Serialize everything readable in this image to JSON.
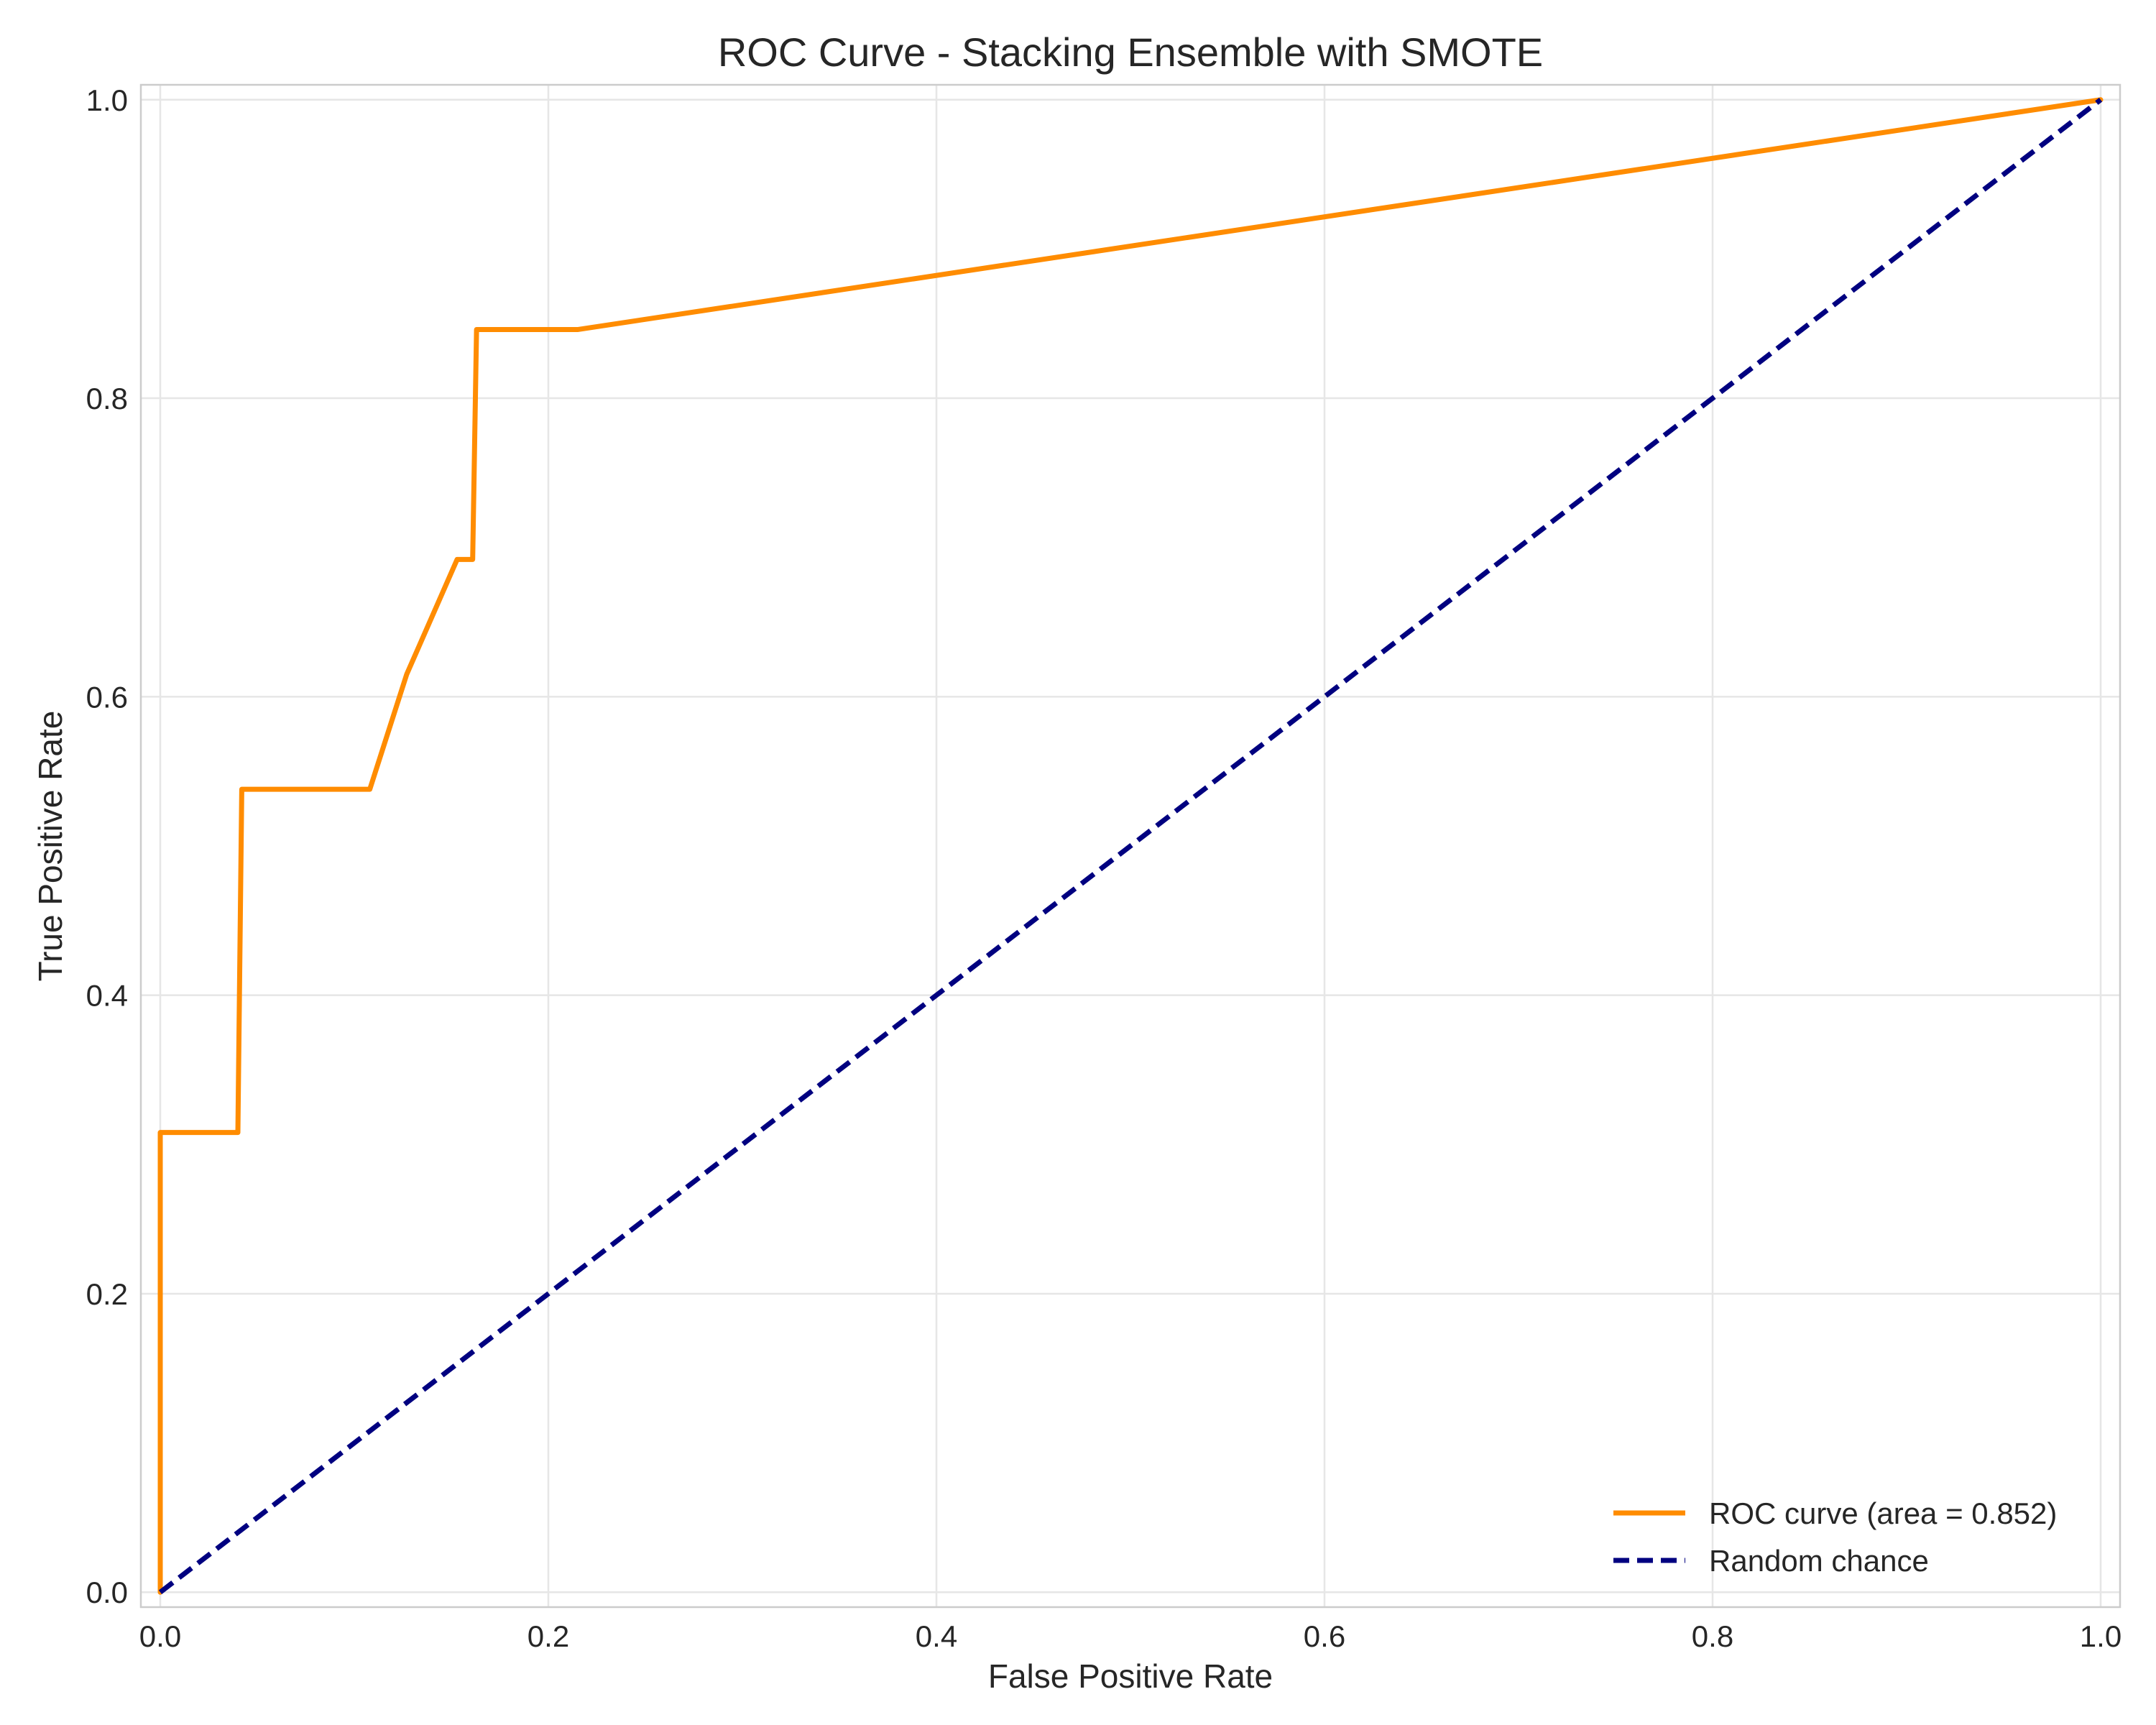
{
  "chart_data": {
    "type": "line",
    "title": "ROC Curve - Stacking Ensemble with SMOTE",
    "xlabel": "False Positive Rate",
    "ylabel": "True Positive Rate",
    "xlim": [
      -0.01,
      1.01
    ],
    "ylim": [
      -0.01,
      1.01
    ],
    "xticks": [
      0.0,
      0.2,
      0.4,
      0.6,
      0.8,
      1.0
    ],
    "yticks": [
      0.0,
      0.2,
      0.4,
      0.6,
      0.8,
      1.0
    ],
    "xtick_labels": [
      "0.0",
      "0.2",
      "0.4",
      "0.6",
      "0.8",
      "1.0"
    ],
    "ytick_labels": [
      "0.0",
      "0.2",
      "0.4",
      "0.6",
      "0.8",
      "1.0"
    ],
    "grid": true,
    "legend_position": "lower right",
    "series": [
      {
        "name": "ROC curve (area = 0.852)",
        "color": "#ff8c00",
        "line_style": "solid",
        "x": [
          0.0,
          0.0,
          0.04,
          0.042,
          0.108,
          0.127,
          0.153,
          0.161,
          0.163,
          0.215,
          1.0
        ],
        "y": [
          0.0,
          0.308,
          0.308,
          0.538,
          0.538,
          0.615,
          0.692,
          0.692,
          0.846,
          0.846,
          1.0
        ]
      },
      {
        "name": "Random chance",
        "color": "#000080",
        "line_style": "dashed",
        "x": [
          0.0,
          1.0
        ],
        "y": [
          0.0,
          1.0
        ]
      }
    ]
  }
}
